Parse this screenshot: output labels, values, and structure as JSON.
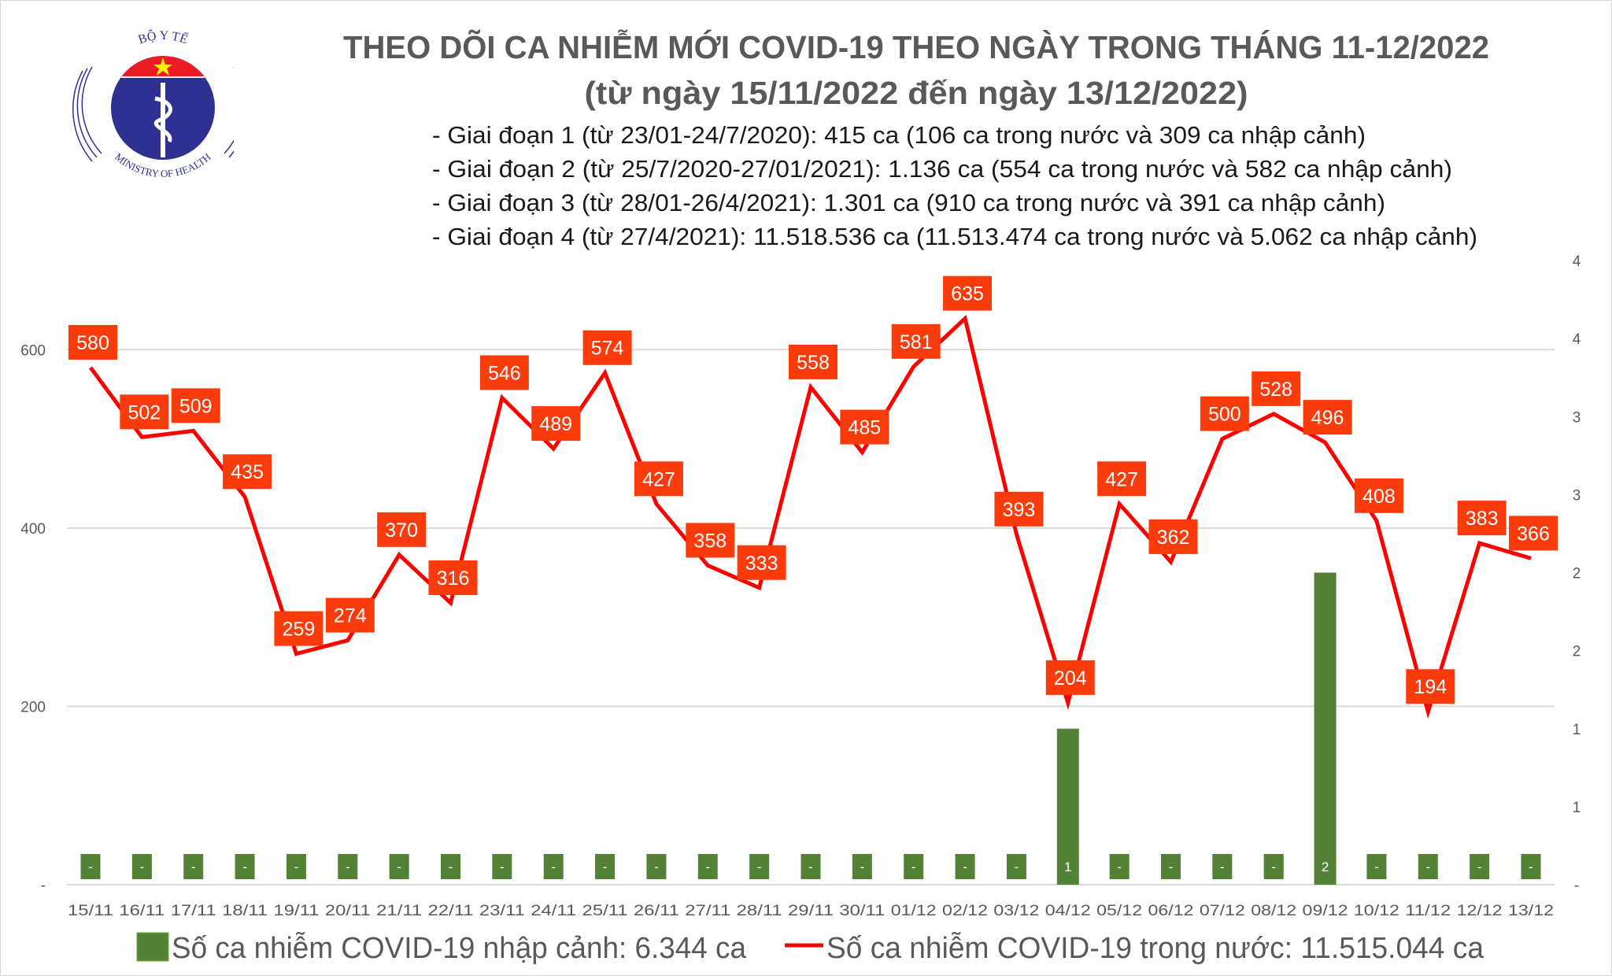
{
  "logo": {
    "top_text": "BỘ Y TẾ",
    "bottom_text": "MINISTRY OF HEALTH"
  },
  "header": {
    "title": "THEO DÕI CA NHIỄM MỚI COVID-19 THEO NGÀY TRONG THÁNG 11-12/2022",
    "subtitle": "(từ ngày 15/11/2022 đến ngày 13/12/2022)",
    "bullets": [
      "- Giai đoạn 1 (từ 23/01-24/7/2020): 415 ca (106 ca trong nước và 309 ca nhập cảnh)",
      "- Giai đoạn 2 (từ 25/7/2020-27/01/2021): 1.136 ca (554 ca trong nước và 582 ca nhập cảnh)",
      "- Giai đoạn 3 (từ 28/01-26/4/2021): 1.301 ca (910 ca trong nước và 391 ca nhập cảnh)",
      "- Giai đoạn 4 (từ 27/4/2021): 11.518.536 ca (11.513.474 ca trong nước và 5.062 ca nhập cảnh)"
    ]
  },
  "chart_data": {
    "type": "bar+line",
    "title": "THEO DÕI CA NHIỄM MỚI COVID-19 THEO NGÀY TRONG THÁNG 11-12/2022",
    "categories": [
      "15/11",
      "16/11",
      "17/11",
      "18/11",
      "19/11",
      "20/11",
      "21/11",
      "22/11",
      "23/11",
      "24/11",
      "25/11",
      "26/11",
      "27/11",
      "28/11",
      "29/11",
      "30/11",
      "01/12",
      "02/12",
      "03/12",
      "04/12",
      "05/12",
      "06/12",
      "07/12",
      "08/12",
      "09/12",
      "10/12",
      "11/12",
      "12/12",
      "13/12"
    ],
    "series": [
      {
        "name": "Số ca nhiễm COVID-19 nhập cảnh: 6.344 ca",
        "type": "bar",
        "axis": "right",
        "color": "#538135",
        "values": [
          0,
          0,
          0,
          0,
          0,
          0,
          0,
          0,
          0,
          0,
          0,
          0,
          0,
          0,
          0,
          0,
          0,
          0,
          0,
          1,
          0,
          0,
          0,
          0,
          2,
          0,
          0,
          0,
          0
        ]
      },
      {
        "name": "Số ca nhiễm COVID-19 trong nước: 11.515.044 ca",
        "type": "line",
        "axis": "left",
        "color": "#ff0000",
        "label_color": "#fa3c0c",
        "values": [
          580,
          502,
          509,
          435,
          259,
          274,
          370,
          316,
          546,
          489,
          574,
          427,
          358,
          333,
          558,
          485,
          581,
          635,
          393,
          204,
          427,
          362,
          500,
          528,
          496,
          408,
          194,
          383,
          366
        ]
      }
    ],
    "y_left": {
      "ylim": [
        0,
        700
      ],
      "ticks": [
        0,
        200,
        400,
        600
      ],
      "tick_labels": [
        "-",
        "200",
        "400",
        "600"
      ]
    },
    "y_right": {
      "ylim": [
        0,
        4
      ],
      "ticks": [
        0,
        0.5,
        1,
        1.5,
        2,
        2.5,
        3,
        3.5,
        4
      ],
      "tick_labels": [
        "-",
        "1",
        "1",
        "2",
        "2",
        "3",
        "3",
        "4",
        "4"
      ]
    },
    "zero_label": "-",
    "grid": true,
    "legend": "bottom",
    "colors": {
      "bar": "#538135",
      "line": "#ff0000",
      "label_bg": "#fa3c0c",
      "grid": "#d9d9d9"
    }
  }
}
